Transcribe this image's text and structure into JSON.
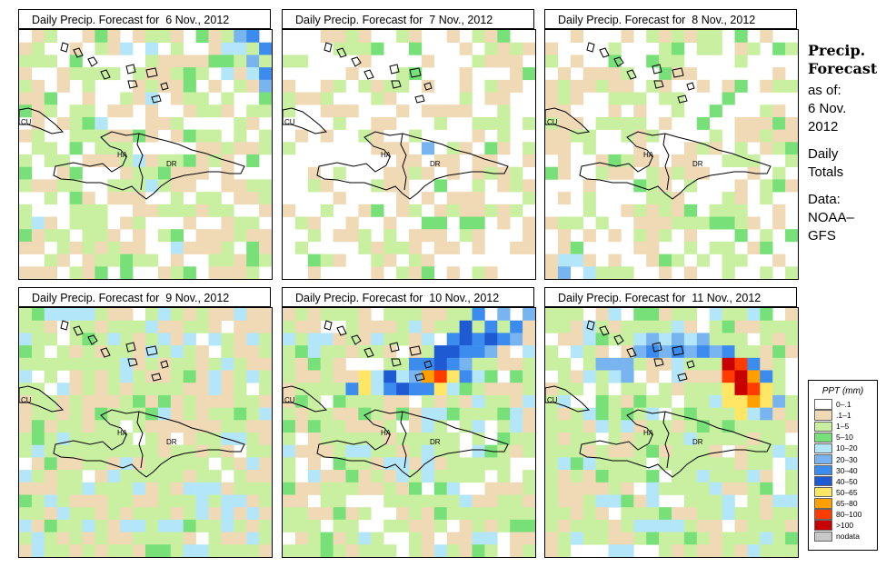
{
  "sidebar": {
    "title_line1": "Precip.",
    "title_line2": "Forecast",
    "asof_label": "as of:",
    "asof_date_line1": "6 Nov.",
    "asof_date_line2": "2012",
    "totals_line1": "Daily",
    "totals_line2": "Totals",
    "data_line1": "Data:",
    "data_line2": "NOAA–",
    "data_line3": "GFS"
  },
  "panels": [
    {
      "title": "Daily Precip. Forecast for  6 Nov., 2012"
    },
    {
      "title": "Daily Precip. Forecast for  7 Nov., 2012"
    },
    {
      "title": "Daily Precip. Forecast for  8 Nov., 2012"
    },
    {
      "title": "Daily Precip. Forecast for  9 Nov., 2012"
    },
    {
      "title": "Daily Precip. Forecast for  10 Nov., 2012"
    },
    {
      "title": "Daily Precip. Forecast for  11 Nov., 2012"
    }
  ],
  "map_labels": {
    "cuba": "CU",
    "haiti": "HA",
    "dominican_republic": "DR"
  },
  "legend": {
    "title": "PPT (mm)",
    "items": [
      {
        "label": "0–.1",
        "color": "#ffffff"
      },
      {
        "label": ".1–1",
        "color": "#f0d9b5"
      },
      {
        "label": "1–5",
        "color": "#c8f0a0"
      },
      {
        "label": "5–10",
        "color": "#78e078"
      },
      {
        "label": "10–20",
        "color": "#b4e6fa"
      },
      {
        "label": "20–30",
        "color": "#78b4f0"
      },
      {
        "label": "30–40",
        "color": "#3c8cf0"
      },
      {
        "label": "40–50",
        "color": "#1e5ad2"
      },
      {
        "label": "50–65",
        "color": "#ffe664"
      },
      {
        "label": "65–80",
        "color": "#ffa000"
      },
      {
        "label": "80–100",
        "color": "#ff3c00"
      },
      {
        "label": ">100",
        "color": "#c80000"
      },
      {
        "label": "nodata",
        "color": "#c8c8c8"
      }
    ]
  }
}
